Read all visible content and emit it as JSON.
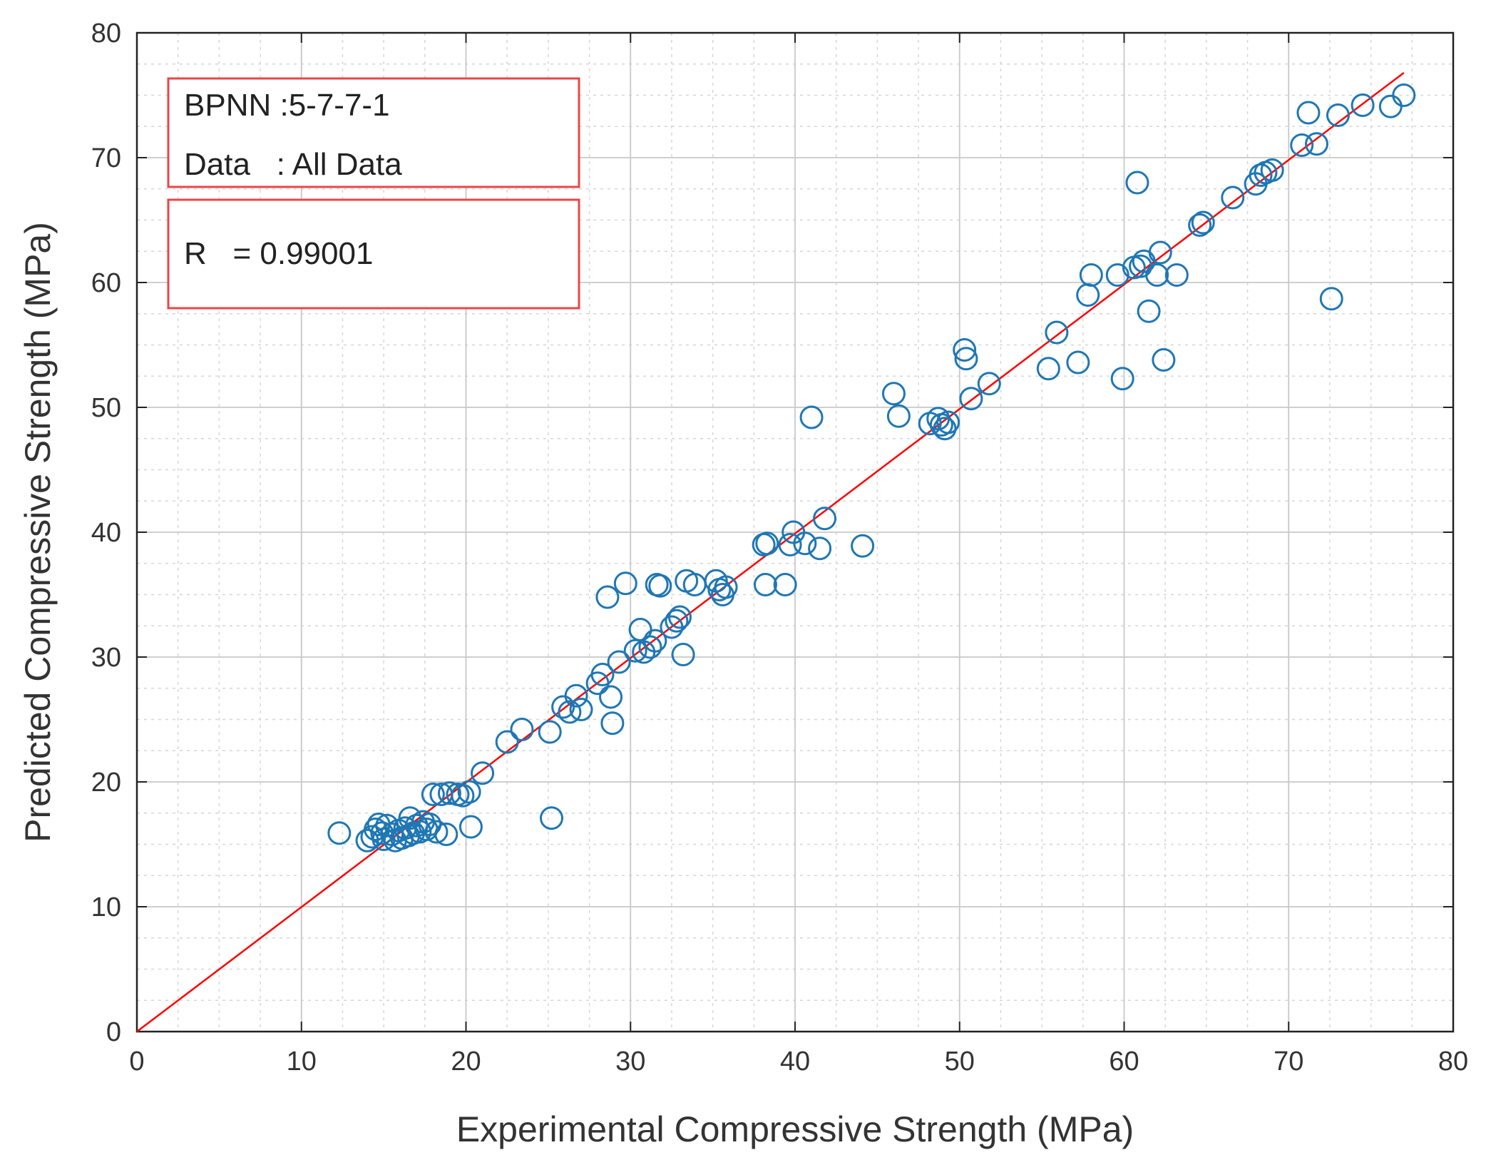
{
  "chart_data": {
    "type": "scatter",
    "xlabel": "Experimental Compressive Strength (MPa)",
    "ylabel": "Predicted Compressive Strength (MPa)",
    "xlim": [
      0,
      80
    ],
    "ylim": [
      0,
      80
    ],
    "xticks": [
      0,
      10,
      20,
      30,
      40,
      50,
      60,
      70,
      80
    ],
    "yticks": [
      0,
      10,
      20,
      30,
      40,
      50,
      60,
      70,
      80
    ],
    "grid": true,
    "colors": {
      "points": "#1f77b4",
      "fit": "#ff0000",
      "annotation_border": "#ee4444"
    },
    "annotations": {
      "model_line": "BPNN :5-7-7-1",
      "data_line": "Data   : All Data",
      "r_line": "R   = 0.99001"
    },
    "fit_line": {
      "x": [
        0,
        77
      ],
      "y": [
        0,
        76.8
      ]
    },
    "points": [
      [
        12.3,
        15.9
      ],
      [
        14.0,
        15.3
      ],
      [
        14.3,
        15.6
      ],
      [
        14.5,
        16.2
      ],
      [
        14.7,
        16.6
      ],
      [
        14.9,
        15.9
      ],
      [
        15.0,
        15.4
      ],
      [
        15.2,
        16.5
      ],
      [
        15.5,
        15.8
      ],
      [
        15.7,
        15.3
      ],
      [
        15.9,
        16.1
      ],
      [
        16.1,
        15.5
      ],
      [
        16.3,
        16.3
      ],
      [
        16.5,
        15.7
      ],
      [
        16.6,
        17.1
      ],
      [
        16.8,
        15.9
      ],
      [
        17.0,
        16.5
      ],
      [
        17.2,
        16.0
      ],
      [
        17.4,
        16.8
      ],
      [
        17.6,
        16.2
      ],
      [
        17.8,
        16.6
      ],
      [
        18.0,
        19.0
      ],
      [
        18.2,
        16.0
      ],
      [
        18.5,
        19.0
      ],
      [
        18.8,
        15.8
      ],
      [
        19.0,
        19.1
      ],
      [
        19.5,
        19.0
      ],
      [
        19.8,
        18.9
      ],
      [
        20.2,
        19.2
      ],
      [
        20.3,
        16.4
      ],
      [
        21.0,
        20.7
      ],
      [
        22.5,
        23.2
      ],
      [
        23.4,
        24.2
      ],
      [
        25.1,
        24.0
      ],
      [
        25.2,
        17.1
      ],
      [
        25.9,
        26.0
      ],
      [
        26.3,
        25.6
      ],
      [
        26.7,
        26.9
      ],
      [
        27.0,
        25.8
      ],
      [
        28.0,
        27.9
      ],
      [
        28.3,
        28.6
      ],
      [
        28.6,
        34.8
      ],
      [
        28.8,
        26.8
      ],
      [
        28.9,
        24.7
      ],
      [
        29.3,
        29.6
      ],
      [
        29.7,
        35.9
      ],
      [
        30.3,
        30.5
      ],
      [
        30.6,
        32.2
      ],
      [
        30.8,
        30.4
      ],
      [
        31.2,
        30.8
      ],
      [
        31.5,
        31.3
      ],
      [
        31.6,
        35.8
      ],
      [
        31.8,
        35.7
      ],
      [
        32.5,
        32.4
      ],
      [
        32.8,
        32.9
      ],
      [
        33.0,
        33.2
      ],
      [
        33.2,
        30.2
      ],
      [
        33.4,
        36.1
      ],
      [
        33.9,
        35.8
      ],
      [
        35.2,
        36.1
      ],
      [
        35.4,
        35.4
      ],
      [
        35.6,
        35.0
      ],
      [
        35.8,
        35.6
      ],
      [
        38.1,
        39.0
      ],
      [
        38.3,
        39.1
      ],
      [
        38.2,
        35.8
      ],
      [
        39.4,
        35.8
      ],
      [
        39.7,
        39.0
      ],
      [
        39.9,
        40.0
      ],
      [
        40.6,
        39.1
      ],
      [
        41.0,
        49.2
      ],
      [
        41.5,
        38.7
      ],
      [
        41.8,
        41.1
      ],
      [
        44.1,
        38.9
      ],
      [
        46.0,
        51.1
      ],
      [
        46.3,
        49.3
      ],
      [
        48.2,
        48.7
      ],
      [
        48.7,
        49.1
      ],
      [
        48.9,
        48.6
      ],
      [
        49.1,
        48.3
      ],
      [
        49.3,
        48.8
      ],
      [
        50.3,
        54.6
      ],
      [
        50.4,
        53.9
      ],
      [
        50.7,
        50.7
      ],
      [
        51.8,
        51.9
      ],
      [
        55.4,
        53.1
      ],
      [
        55.9,
        56.0
      ],
      [
        57.2,
        53.6
      ],
      [
        57.8,
        59.0
      ],
      [
        58.0,
        60.6
      ],
      [
        59.6,
        60.6
      ],
      [
        59.9,
        52.3
      ],
      [
        60.6,
        61.2
      ],
      [
        60.8,
        68.0
      ],
      [
        61.0,
        61.3
      ],
      [
        61.2,
        61.7
      ],
      [
        61.5,
        57.7
      ],
      [
        62.0,
        60.6
      ],
      [
        62.2,
        62.4
      ],
      [
        62.4,
        53.8
      ],
      [
        63.2,
        60.6
      ],
      [
        64.6,
        64.6
      ],
      [
        64.8,
        64.8
      ],
      [
        66.6,
        66.8
      ],
      [
        68.0,
        67.9
      ],
      [
        68.3,
        68.6
      ],
      [
        68.6,
        68.8
      ],
      [
        69.0,
        69.0
      ],
      [
        70.8,
        71.0
      ],
      [
        71.2,
        73.6
      ],
      [
        71.7,
        71.1
      ],
      [
        72.6,
        58.7
      ],
      [
        73.0,
        73.4
      ],
      [
        74.5,
        74.2
      ],
      [
        76.2,
        74.1
      ],
      [
        77.0,
        75.0
      ]
    ]
  }
}
